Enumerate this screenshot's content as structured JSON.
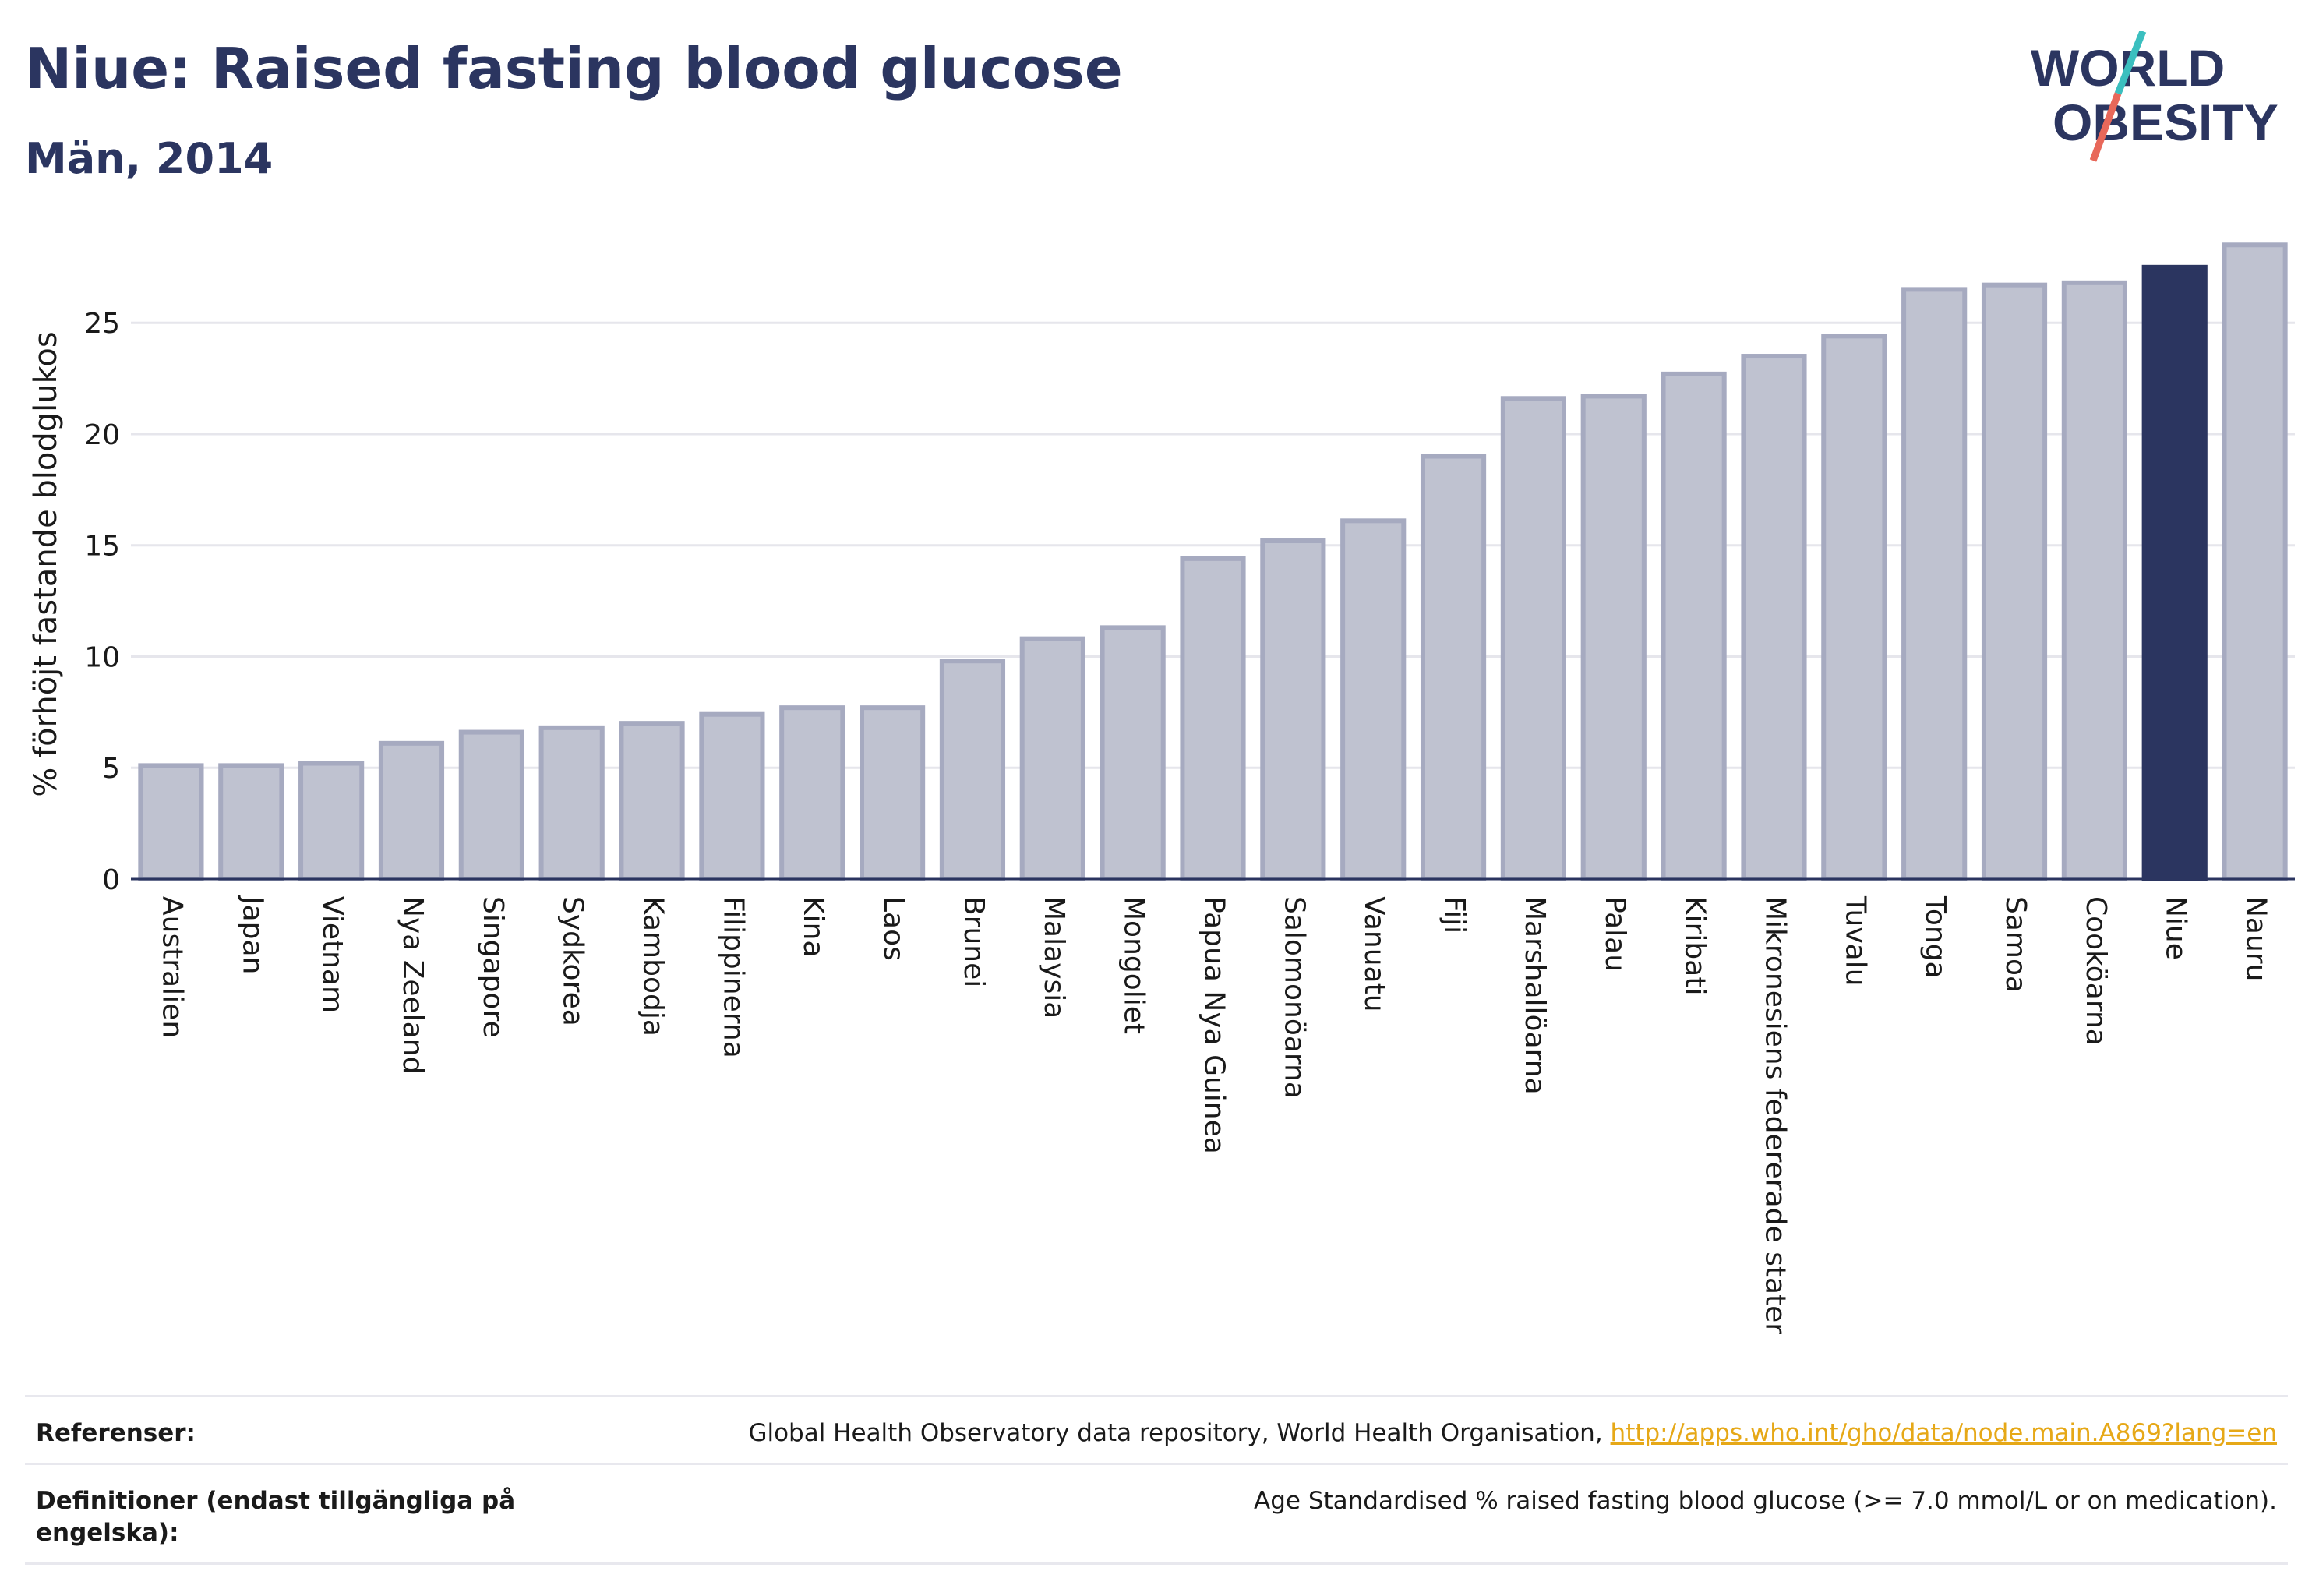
{
  "header": {
    "title": "Niue: Raised fasting blood glucose",
    "subtitle": "Män, 2014"
  },
  "logo": {
    "line1": "WORLD",
    "line2": "OBESITY",
    "colors": {
      "text": "#2b3560",
      "slash_top": "#3bbfbf",
      "slash_bottom": "#e8685a"
    }
  },
  "chart_data": {
    "type": "bar",
    "title": "Niue: Raised fasting blood glucose",
    "subtitle": "Män, 2014",
    "ylabel": "% förhöjt fastande blodglukos",
    "xlabel": "",
    "ylim": [
      0,
      29
    ],
    "yticks": [
      0,
      5,
      10,
      15,
      20,
      25
    ],
    "grid": true,
    "highlight": "Niue",
    "colors": {
      "bar": "#bfc2d0",
      "bar_border": "#a6aac0",
      "highlight": "#2b3560",
      "grid": "#e6e6ec",
      "axis": "#2b3560"
    },
    "categories": [
      "Australien",
      "Japan",
      "Vietnam",
      "Nya Zeeland",
      "Singapore",
      "Sydkorea",
      "Kambodja",
      "Filippinerna",
      "Kina",
      "Laos",
      "Brunei",
      "Malaysia",
      "Mongoliet",
      "Papua Nya Guinea",
      "Salomonöarna",
      "Vanuatu",
      "Fiji",
      "Marshallöarna",
      "Palau",
      "Kiribati",
      "Mikronesiens federerade stater",
      "Tuvalu",
      "Tonga",
      "Samoa",
      "Cooköarna",
      "Niue",
      "Nauru"
    ],
    "values": [
      5.1,
      5.1,
      5.2,
      6.1,
      6.6,
      6.8,
      7.0,
      7.4,
      7.7,
      7.7,
      9.8,
      10.8,
      11.3,
      14.4,
      15.2,
      16.1,
      19.0,
      21.6,
      21.7,
      22.7,
      23.5,
      24.4,
      26.5,
      26.7,
      26.8,
      27.5,
      28.5
    ]
  },
  "footer": {
    "references_label": "Referenser:",
    "references_text": "Global Health Observatory data repository, World Health Organisation, ",
    "references_link": "http://apps.who.int/gho/data/node.main.A869?lang=en",
    "definitions_label": "Definitioner (endast tillgängliga på engelska):",
    "definitions_text": "Age Standardised % raised fasting blood glucose (>= 7.0 mmol/L or on medication)."
  }
}
